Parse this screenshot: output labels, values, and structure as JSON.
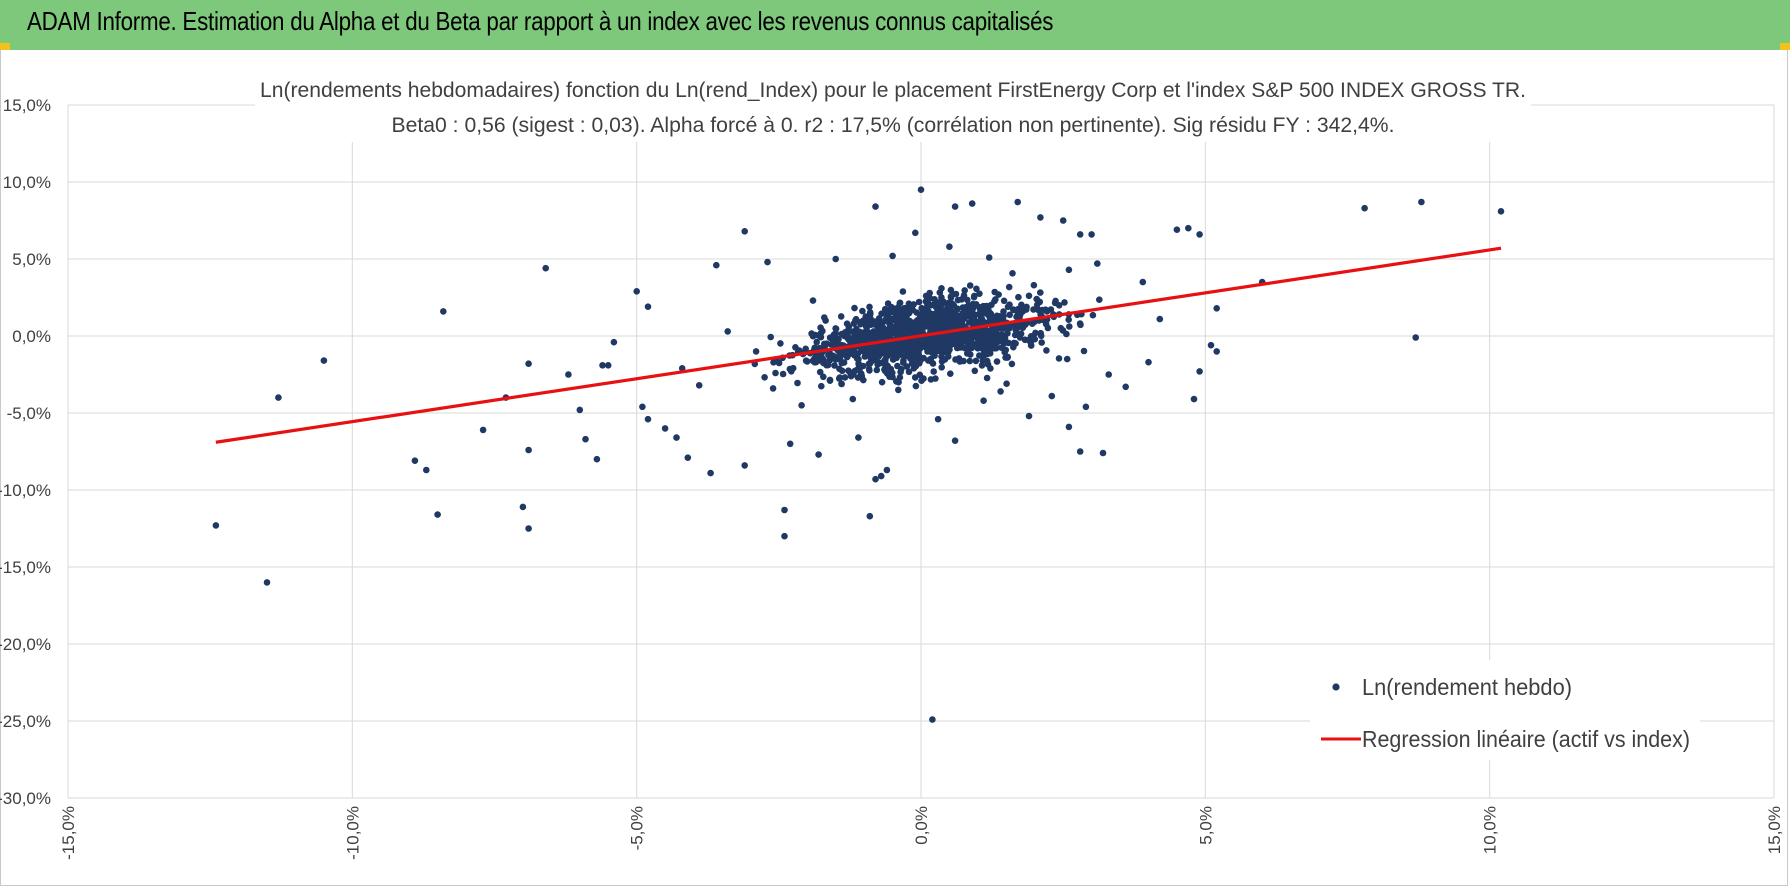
{
  "header": {
    "title": "ADAM Informe. Estimation du Alpha et du Beta par rapport à un index avec les revenus connus capitalisés"
  },
  "colors": {
    "header_bg": "#7ec87c",
    "corner_marker": "#f2c21b",
    "points": "#203864",
    "regression": "#e81010",
    "grid": "#d9d9d9"
  },
  "chart_data": {
    "type": "scatter",
    "title_line1": "Ln(rendements hebdomadaires) fonction du Ln(rend_Index) pour le placement FirstEnergy Corp et l'index S&P 500 INDEX GROSS TR.",
    "title_line2": "Beta0 : 0,56 (sigest : 0,03).  Alpha forcé à 0. r2 : 17,5% (corrélation non pertinente). Sig résidu FY : 342,4%.",
    "xlim": [
      -15,
      15
    ],
    "ylim": [
      -30,
      15
    ],
    "x_ticks": [
      "-15,0%",
      "-10,0%",
      "-5,0%",
      "0,0%",
      "5,0%",
      "10,0%",
      "15,0%"
    ],
    "x_tick_values": [
      -15,
      -10,
      -5,
      0,
      5,
      10,
      15
    ],
    "y_ticks": [
      "15,0%",
      "10,0%",
      "5,0%",
      "0,0%",
      "-5,0%",
      "-10,0%",
      "-15,0%",
      "-20,0%",
      "-25,0%",
      "-30,0%"
    ],
    "y_tick_values": [
      15,
      10,
      5,
      0,
      -5,
      -10,
      -15,
      -20,
      -25,
      -30
    ],
    "grid": true,
    "legend_position": "bottom-right",
    "series": [
      {
        "name": "Ln(rendement hebdo)",
        "kind": "scatter",
        "color": "#203864",
        "points": [
          [
            -12.4,
            -12.3
          ],
          [
            -11.5,
            -16.0
          ],
          [
            -11.3,
            -4.0
          ],
          [
            -10.5,
            -1.6
          ],
          [
            -8.4,
            1.6
          ],
          [
            -8.9,
            -8.1
          ],
          [
            -8.7,
            -8.7
          ],
          [
            -8.5,
            -11.6
          ],
          [
            -7.7,
            -6.1
          ],
          [
            -7.3,
            -4.0
          ],
          [
            -6.9,
            -1.8
          ],
          [
            -6.9,
            -7.4
          ],
          [
            -6.9,
            -12.5
          ],
          [
            -7.0,
            -11.1
          ],
          [
            -6.6,
            4.4
          ],
          [
            -6.0,
            -4.8
          ],
          [
            -5.9,
            -6.7
          ],
          [
            -5.7,
            -8.0
          ],
          [
            -5.5,
            -1.9
          ],
          [
            -5.4,
            -0.4
          ],
          [
            -6.2,
            -2.5
          ],
          [
            -5.6,
            -1.9
          ],
          [
            -5.0,
            2.9
          ],
          [
            -4.8,
            1.9
          ],
          [
            -4.9,
            -4.6
          ],
          [
            -4.8,
            -5.4
          ],
          [
            -4.5,
            -6.0
          ],
          [
            -4.3,
            -6.6
          ],
          [
            -4.1,
            -7.9
          ],
          [
            -3.7,
            -8.9
          ],
          [
            -3.6,
            4.6
          ],
          [
            -3.1,
            6.8
          ],
          [
            -3.1,
            -8.4
          ],
          [
            -2.7,
            4.8
          ],
          [
            -2.4,
            -11.3
          ],
          [
            -2.4,
            -13.0
          ],
          [
            -1.8,
            -7.7
          ],
          [
            -1.5,
            5.0
          ],
          [
            -1.1,
            -6.6
          ],
          [
            -0.8,
            8.4
          ],
          [
            -0.8,
            -9.3
          ],
          [
            -0.6,
            -8.7
          ],
          [
            -0.9,
            -11.7
          ],
          [
            -0.7,
            -9.1
          ],
          [
            -0.1,
            6.7
          ],
          [
            0.0,
            9.5
          ],
          [
            0.2,
            -24.9
          ],
          [
            0.6,
            -6.8
          ],
          [
            0.6,
            8.4
          ],
          [
            0.9,
            8.6
          ],
          [
            1.7,
            8.7
          ],
          [
            2.1,
            7.7
          ],
          [
            2.5,
            7.5
          ],
          [
            2.8,
            6.6
          ],
          [
            3.0,
            6.6
          ],
          [
            2.8,
            -7.5
          ],
          [
            3.2,
            -7.6
          ],
          [
            2.6,
            -5.9
          ],
          [
            4.5,
            6.9
          ],
          [
            4.7,
            7.0
          ],
          [
            4.9,
            6.6
          ],
          [
            4.8,
            -4.1
          ],
          [
            4.9,
            -2.3
          ],
          [
            5.1,
            -0.6
          ],
          [
            5.2,
            -1.0
          ],
          [
            5.2,
            1.8
          ],
          [
            6.0,
            3.5
          ],
          [
            7.8,
            8.3
          ],
          [
            8.8,
            8.7
          ],
          [
            8.7,
            -0.1
          ],
          [
            10.2,
            8.1
          ],
          [
            4.0,
            -1.7
          ],
          [
            3.9,
            3.5
          ],
          [
            4.2,
            1.1
          ],
          [
            3.6,
            -3.3
          ],
          [
            -3.9,
            -3.2
          ],
          [
            -4.2,
            -2.1
          ],
          [
            -3.4,
            0.3
          ],
          [
            -2.9,
            -1.0
          ],
          [
            -2.6,
            -3.4
          ],
          [
            -1.9,
            2.3
          ],
          [
            -1.6,
            -2.9
          ],
          [
            -1.3,
            0.8
          ],
          [
            -2.1,
            -4.5
          ],
          [
            -1.7,
            1.2
          ],
          [
            -1.2,
            -4.1
          ],
          [
            -0.4,
            -3.5
          ],
          [
            0.3,
            -5.4
          ],
          [
            -0.5,
            5.2
          ],
          [
            0.5,
            5.8
          ],
          [
            1.1,
            -4.2
          ],
          [
            1.4,
            -3.6
          ],
          [
            1.9,
            -5.2
          ],
          [
            2.3,
            -3.9
          ],
          [
            2.9,
            -4.6
          ],
          [
            3.3,
            -2.5
          ],
          [
            1.2,
            5.1
          ],
          [
            2.6,
            4.3
          ],
          [
            3.1,
            4.7
          ],
          [
            -2.3,
            -7.0
          ]
        ]
      },
      {
        "name": "Regression linéaire (actif vs index)",
        "kind": "line",
        "color": "#e81010",
        "points": [
          [
            -12.4,
            -6.9
          ],
          [
            10.2,
            5.7
          ]
        ]
      }
    ]
  }
}
